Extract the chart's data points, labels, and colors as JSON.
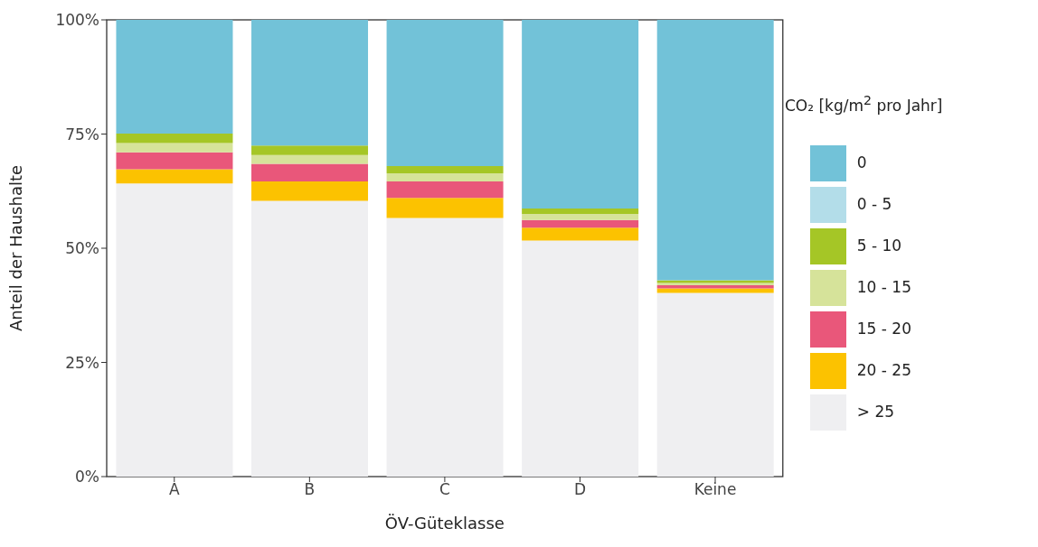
{
  "chart_data": {
    "type": "bar",
    "stacked": true,
    "xlabel": "ÖV-Güteklasse",
    "ylabel": "Anteil der Haushalte",
    "legend_title": "CO₂ [kg/m$^{2}$ pro Jahr]",
    "legend": "right",
    "grid": false,
    "categories": [
      "A",
      "B",
      "C",
      "D",
      "Keine"
    ],
    "ylim": [
      0,
      100
    ],
    "yticks": [
      {
        "value": 0,
        "label": "0%"
      },
      {
        "value": 25,
        "label": "25%"
      },
      {
        "value": 50,
        "label": "50%"
      },
      {
        "value": 75,
        "label": "75%"
      },
      {
        "value": 100,
        "label": "100%"
      }
    ],
    "series": [
      {
        "name": "> 25",
        "color": "#efeff1",
        "values": [
          64.2,
          60.4,
          56.6,
          51.7,
          40.2
        ]
      },
      {
        "name": "20 - 25",
        "color": "#fcc200",
        "values": [
          3.1,
          4.2,
          4.4,
          2.8,
          1.0
        ]
      },
      {
        "name": "15 - 20",
        "color": "#e9577a",
        "values": [
          3.7,
          3.9,
          3.6,
          1.7,
          0.7
        ]
      },
      {
        "name": "10 - 15",
        "color": "#d6e39a",
        "values": [
          2.0,
          1.9,
          1.8,
          1.3,
          0.5
        ]
      },
      {
        "name": "5 - 10",
        "color": "#a5c626",
        "values": [
          2.1,
          2.1,
          1.6,
          1.2,
          0.6
        ]
      },
      {
        "name": "0 - 5",
        "color": "#b3dde9",
        "values": [
          0,
          0,
          0,
          0,
          0
        ]
      },
      {
        "name": "0",
        "color": "#72c2d8",
        "values": [
          24.9,
          27.5,
          32.0,
          41.3,
          57.0
        ]
      }
    ]
  }
}
